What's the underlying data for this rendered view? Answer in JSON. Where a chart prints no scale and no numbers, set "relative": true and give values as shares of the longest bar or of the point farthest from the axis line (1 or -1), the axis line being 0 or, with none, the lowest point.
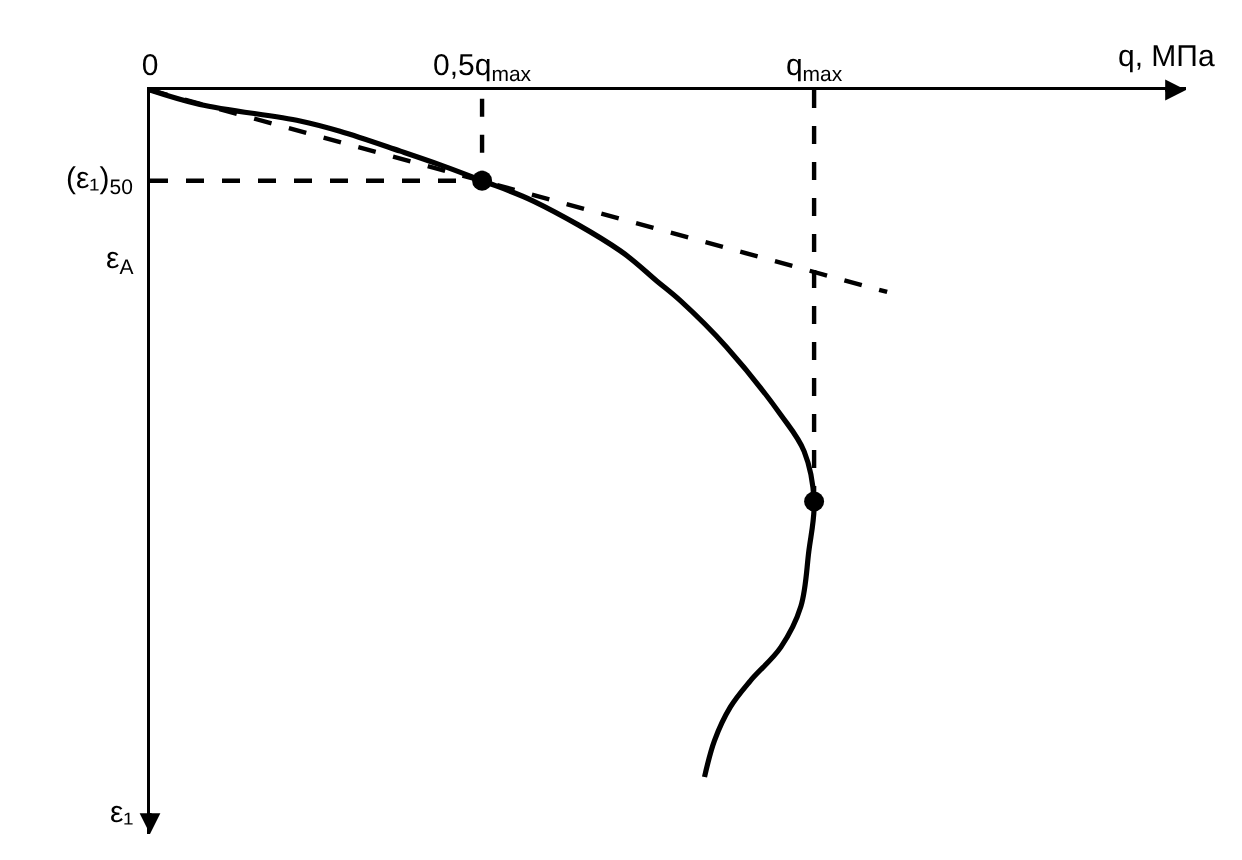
{
  "chart_data": {
    "type": "line",
    "relative": true,
    "xlabel": "q, МПа",
    "ylabel": "ε₁",
    "xlim": [
      0,
      1.56
    ],
    "xticks": [
      0,
      {
        "value": 0.5,
        "label": "0,5q$_{max}$"
      },
      {
        "value": 1,
        "label": "q$_{max}$"
      }
    ],
    "annotations": [
      {
        "text": "(ε₁)$_{50}$",
        "x": 0,
        "y": -0.132
      },
      "ε$_{A}$"
    ],
    "series": [
      {
        "color": "#000000",
        "line_style": "solid",
        "x": [
          0,
          0.075,
          0.226,
          0.286,
          0.377,
          0.437,
          0.5,
          0.578,
          0.708,
          0.763,
          0.799,
          0.868,
          0.95,
          0.985,
          1.0,
          0.992,
          0.98,
          0.95,
          0.904,
          0.874,
          0.85,
          0.835
        ],
        "values": [
          0,
          -0.021,
          -0.045,
          -0.06,
          -0.089,
          -0.109,
          -0.132,
          -0.162,
          -0.234,
          -0.278,
          -0.307,
          -0.374,
          -0.473,
          -0.526,
          -0.599,
          -0.672,
          -0.752,
          -0.811,
          -0.86,
          -0.898,
          -0.947,
          -1
        ]
      },
      {
        "color": "#000000",
        "line_style": "dashed",
        "x": [
          0,
          1.11
        ],
        "values": [
          0,
          -0.294
        ]
      },
      {
        "color": "#000000",
        "line_style": "dashed",
        "x": [
          0,
          0.5,
          0.5
        ],
        "values": [
          -0.132,
          -0.132,
          0
        ]
      },
      {
        "color": "#000000",
        "line_style": "dashed",
        "x": [
          1,
          1
        ],
        "values": [
          0,
          -0.599
        ]
      },
      {
        "type": "scatter",
        "color": "#000000",
        "marker": "circle",
        "x": [
          0.5,
          1
        ],
        "values": [
          -0.132,
          -0.599
        ]
      }
    ]
  }
}
